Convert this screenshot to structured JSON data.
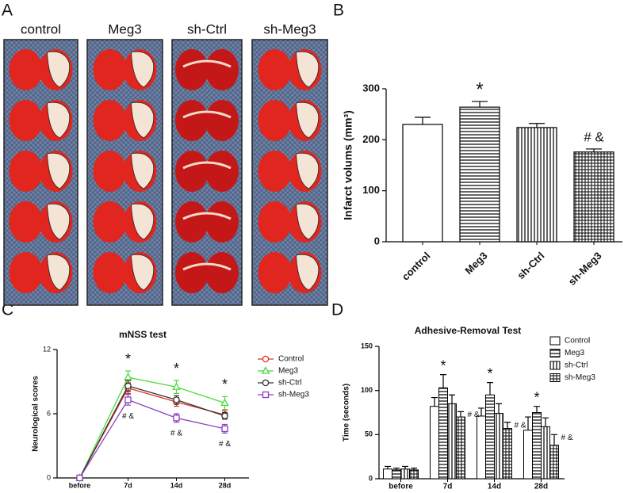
{
  "panel_letters": [
    "A",
    "B",
    "C",
    "D"
  ],
  "photo_panel": {
    "labels": [
      "control",
      "Meg3",
      "sh-Ctrl",
      "sh-Meg3"
    ]
  },
  "chart_data": [
    {
      "type": "bar",
      "ylabel": "Infarct volums (mm³)",
      "categories": [
        "control",
        "Meg3",
        "sh-Ctrl",
        "sh-Meg3"
      ],
      "values": [
        230,
        264,
        224,
        176
      ],
      "errors": [
        14,
        11,
        8,
        6
      ],
      "patterns": [
        "none",
        "horizontal",
        "vertical",
        "grid"
      ],
      "color": "#000000",
      "ylim": [
        0,
        300
      ],
      "yticks": [
        0,
        100,
        200,
        300
      ],
      "annotations": [
        {
          "text": "*",
          "x": "Meg3"
        },
        {
          "text": "# &",
          "x": "sh-Meg3"
        }
      ]
    },
    {
      "type": "line",
      "title": "mNSS test",
      "ylabel": "Neurological scores",
      "categories": [
        "before",
        "7d",
        "14d",
        "28d"
      ],
      "series": [
        {
          "name": "Control",
          "color": "#e0302a",
          "marker": "circle",
          "values": [
            0,
            8.4,
            7.1,
            5.9
          ],
          "errors": [
            0,
            0.5,
            0.4,
            0.4
          ]
        },
        {
          "name": "Meg3",
          "color": "#4fd83c",
          "marker": "triangle",
          "values": [
            0,
            9.4,
            8.5,
            7.0
          ],
          "errors": [
            0,
            0.6,
            0.6,
            0.6
          ]
        },
        {
          "name": "sh-Ctrl",
          "color": "#333333",
          "marker": "circle",
          "values": [
            0,
            8.6,
            7.3,
            5.8
          ],
          "errors": [
            0,
            0.5,
            0.4,
            0.3
          ]
        },
        {
          "name": "sh-Meg3",
          "color": "#8a3fc0",
          "marker": "square",
          "values": [
            0,
            7.3,
            5.6,
            4.6
          ],
          "errors": [
            0,
            0.5,
            0.4,
            0.4
          ]
        }
      ],
      "ylim": [
        0,
        12
      ],
      "yticks": [
        0,
        6,
        12
      ],
      "legend": "right",
      "annotations": [
        {
          "text": "*",
          "x": "7d",
          "series": "Meg3"
        },
        {
          "text": "*",
          "x": "14d",
          "series": "Meg3"
        },
        {
          "text": "*",
          "x": "28d",
          "series": "Meg3"
        },
        {
          "text": "# &",
          "x": "7d",
          "series": "sh-Meg3"
        },
        {
          "text": "# &",
          "x": "14d",
          "series": "sh-Meg3"
        },
        {
          "text": "# &",
          "x": "28d",
          "series": "sh-Meg3"
        }
      ]
    },
    {
      "type": "bar",
      "title": "Adhesive-Removal Test",
      "ylabel": "Time (seconds)",
      "categories": [
        "before",
        "7d",
        "14d",
        "28d"
      ],
      "series": [
        {
          "name": "Control",
          "pattern": "none",
          "color": "#000000",
          "values": [
            11,
            82,
            71,
            55
          ],
          "errors": [
            3,
            10,
            9,
            15
          ]
        },
        {
          "name": "Meg3",
          "pattern": "horizontal",
          "color": "#000000",
          "values": [
            10,
            103,
            95,
            75
          ],
          "errors": [
            2,
            15,
            14,
            7
          ]
        },
        {
          "name": "sh-Ctrl",
          "pattern": "vertical",
          "color": "#000000",
          "values": [
            11,
            85,
            74,
            59
          ],
          "errors": [
            3,
            10,
            11,
            10
          ]
        },
        {
          "name": "sh-Meg3",
          "pattern": "grid",
          "color": "#000000",
          "values": [
            10,
            70,
            57,
            38
          ],
          "errors": [
            2,
            6,
            7,
            12
          ]
        }
      ],
      "ylim": [
        0,
        150
      ],
      "yticks": [
        0,
        50,
        100,
        150
      ],
      "legend": "upper right",
      "annotations": [
        {
          "text": "*",
          "x": "7d",
          "series": "Meg3"
        },
        {
          "text": "*",
          "x": "14d",
          "series": "Meg3"
        },
        {
          "text": "*",
          "x": "28d",
          "series": "Meg3"
        },
        {
          "text": "# &",
          "x": "7d",
          "series": "sh-Meg3"
        },
        {
          "text": "# &",
          "x": "14d",
          "series": "sh-Meg3"
        },
        {
          "text": "# &",
          "x": "28d",
          "series": "sh-Meg3"
        }
      ]
    }
  ]
}
